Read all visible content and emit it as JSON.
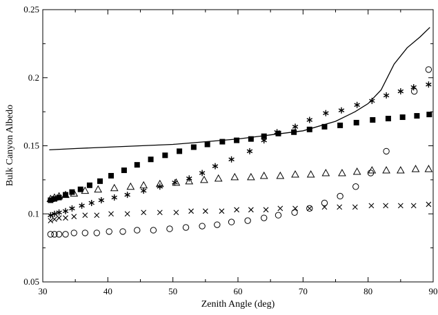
{
  "chart_data": {
    "type": "scatter",
    "title": "",
    "xlabel": "Zenith Angle (deg)",
    "ylabel": "Bulk Canyon Albedo",
    "xlim": [
      30,
      90
    ],
    "ylim": [
      0.05,
      0.25
    ],
    "x_ticks": [
      30,
      40,
      50,
      60,
      70,
      80,
      90
    ],
    "y_ticks": [
      0.05,
      0.1,
      0.15,
      0.2,
      0.25
    ],
    "x_tick_labels": [
      "30",
      "40",
      "50",
      "60",
      "70",
      "80",
      "90"
    ],
    "y_tick_labels": [
      "0.05",
      "0.1",
      "0.15",
      "0.2",
      "0.25"
    ],
    "grid": false,
    "legend": "none",
    "series": [
      {
        "marker": "line",
        "x": [
          31,
          35,
          40,
          45,
          50,
          55,
          60,
          65,
          70,
          75,
          78,
          80,
          82,
          84,
          86,
          88,
          89.5
        ],
        "y": [
          0.147,
          0.148,
          0.149,
          0.15,
          0.151,
          0.153,
          0.155,
          0.158,
          0.161,
          0.168,
          0.175,
          0.181,
          0.191,
          0.21,
          0.222,
          0.23,
          0.237
        ]
      },
      {
        "marker": "square",
        "x": [
          31.2,
          31.8,
          32.5,
          33.5,
          34.5,
          35.8,
          37.2,
          38.8,
          40.5,
          42.5,
          44.5,
          46.6,
          48.8,
          51,
          53.2,
          55.3,
          57.6,
          59.8,
          62,
          64,
          66.2,
          68.6,
          71,
          73.3,
          75.7,
          78.2,
          80.7,
          83.1,
          85.3,
          87.5,
          89.4
        ],
        "y": [
          0.11,
          0.111,
          0.112,
          0.114,
          0.116,
          0.118,
          0.121,
          0.124,
          0.128,
          0.132,
          0.136,
          0.14,
          0.143,
          0.146,
          0.149,
          0.151,
          0.153,
          0.154,
          0.155,
          0.157,
          0.159,
          0.16,
          0.162,
          0.164,
          0.165,
          0.167,
          0.169,
          0.17,
          0.171,
          0.172,
          0.173
        ]
      },
      {
        "marker": "asterisk",
        "x": [
          31.2,
          31.8,
          32.5,
          33.5,
          34.5,
          36,
          37.5,
          39,
          41,
          43,
          45.5,
          48,
          50.3,
          52.5,
          54.5,
          56.5,
          59,
          61.8,
          64,
          66,
          68.8,
          71,
          73.5,
          75.9,
          78.3,
          80.6,
          82.8,
          85,
          87,
          89.3
        ],
        "y": [
          0.099,
          0.1,
          0.101,
          0.102,
          0.104,
          0.106,
          0.108,
          0.11,
          0.112,
          0.114,
          0.117,
          0.12,
          0.123,
          0.126,
          0.13,
          0.135,
          0.14,
          0.146,
          0.154,
          0.16,
          0.164,
          0.169,
          0.174,
          0.176,
          0.18,
          0.183,
          0.187,
          0.19,
          0.193,
          0.195
        ]
      },
      {
        "marker": "triangle",
        "x": [
          31.2,
          31.8,
          32.5,
          33.5,
          34.8,
          36.5,
          38.5,
          41,
          43.5,
          45.5,
          48,
          50.5,
          52.5,
          54.8,
          57,
          59.5,
          62,
          64,
          66.5,
          68.8,
          71.2,
          73.5,
          76,
          78.3,
          80.6,
          82.8,
          85,
          87.3,
          89.3
        ],
        "y": [
          0.111,
          0.112,
          0.113,
          0.114,
          0.115,
          0.117,
          0.118,
          0.119,
          0.12,
          0.121,
          0.122,
          0.123,
          0.124,
          0.125,
          0.126,
          0.127,
          0.127,
          0.128,
          0.128,
          0.129,
          0.129,
          0.13,
          0.13,
          0.131,
          0.132,
          0.132,
          0.132,
          0.133,
          0.133
        ]
      },
      {
        "marker": "x",
        "x": [
          31.2,
          31.8,
          32.5,
          33.5,
          34.8,
          36.5,
          38.3,
          40.5,
          43,
          45.5,
          48,
          50.5,
          52.8,
          55,
          57.5,
          59.8,
          62,
          64.3,
          66.5,
          68.8,
          71,
          73.3,
          75.6,
          78,
          80.5,
          82.7,
          85,
          87,
          89.3
        ],
        "y": [
          0.095,
          0.096,
          0.097,
          0.097,
          0.098,
          0.099,
          0.099,
          0.1,
          0.1,
          0.101,
          0.101,
          0.101,
          0.102,
          0.102,
          0.102,
          0.103,
          0.103,
          0.103,
          0.104,
          0.104,
          0.104,
          0.105,
          0.105,
          0.105,
          0.106,
          0.106,
          0.106,
          0.106,
          0.107
        ]
      },
      {
        "marker": "circle",
        "x": [
          31.2,
          31.8,
          32.5,
          33.5,
          34.8,
          36.5,
          38.3,
          40.2,
          42.3,
          44.5,
          47,
          49.5,
          52,
          54.5,
          56.8,
          59,
          61.5,
          64,
          66.2,
          68.7,
          71,
          73.3,
          75.7,
          78.1,
          80.4,
          82.8,
          87.1,
          89.3
        ],
        "y": [
          0.085,
          0.085,
          0.085,
          0.085,
          0.086,
          0.086,
          0.086,
          0.087,
          0.087,
          0.088,
          0.088,
          0.089,
          0.09,
          0.091,
          0.092,
          0.094,
          0.095,
          0.097,
          0.099,
          0.101,
          0.104,
          0.108,
          0.113,
          0.12,
          0.13,
          0.146,
          0.19,
          0.206
        ]
      }
    ]
  }
}
